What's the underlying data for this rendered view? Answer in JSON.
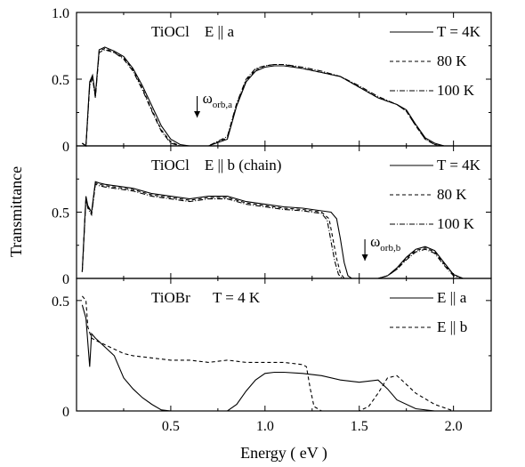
{
  "chart_data": [
    {
      "type": "line",
      "panel_label": "TiOCl    E || a",
      "xlabel": "Energy ( eV )",
      "ylabel": "Transmittance",
      "xlim": [
        0.0,
        2.2
      ],
      "ylim": [
        0.0,
        1.0
      ],
      "y_ticks": [
        "0",
        "0.5",
        "1.0"
      ],
      "legend_position": "top-right",
      "annotation": {
        "base": "ω",
        "sub": "orb,a",
        "x": 0.64
      },
      "series": [
        {
          "name": "T = 4K",
          "dash": "solid",
          "x": [
            0.03,
            0.05,
            0.07,
            0.085,
            0.1,
            0.12,
            0.15,
            0.2,
            0.25,
            0.3,
            0.35,
            0.4,
            0.45,
            0.5,
            0.55,
            0.6,
            0.65,
            0.7,
            0.8,
            0.85,
            0.9,
            0.95,
            1.0,
            1.05,
            1.1,
            1.2,
            1.3,
            1.4,
            1.5,
            1.6,
            1.7,
            1.75,
            1.8,
            1.85,
            1.9,
            1.95,
            2.0
          ],
          "y": [
            0.02,
            0.0,
            0.48,
            0.53,
            0.38,
            0.72,
            0.74,
            0.71,
            0.67,
            0.58,
            0.45,
            0.3,
            0.15,
            0.05,
            0.01,
            0.0,
            0.0,
            0.0,
            0.05,
            0.3,
            0.48,
            0.56,
            0.59,
            0.6,
            0.6,
            0.58,
            0.55,
            0.52,
            0.44,
            0.36,
            0.31,
            0.27,
            0.16,
            0.06,
            0.02,
            0.0,
            0.0
          ]
        },
        {
          "name": "80 K",
          "dash": "4,3",
          "x": [
            0.03,
            0.05,
            0.07,
            0.085,
            0.1,
            0.12,
            0.15,
            0.2,
            0.25,
            0.3,
            0.35,
            0.4,
            0.45,
            0.5,
            0.55,
            0.6,
            0.65,
            0.7,
            0.8,
            0.85,
            0.9,
            0.95,
            1.0,
            1.05,
            1.1,
            1.2,
            1.3,
            1.4,
            1.5,
            1.6,
            1.7,
            1.75,
            1.8,
            1.85,
            1.9,
            1.95,
            2.0
          ],
          "y": [
            0.02,
            0.0,
            0.46,
            0.52,
            0.37,
            0.71,
            0.73,
            0.7,
            0.66,
            0.57,
            0.43,
            0.27,
            0.12,
            0.03,
            0.0,
            0.0,
            0.0,
            0.0,
            0.06,
            0.31,
            0.49,
            0.57,
            0.6,
            0.61,
            0.61,
            0.58,
            0.55,
            0.52,
            0.44,
            0.36,
            0.31,
            0.26,
            0.15,
            0.05,
            0.01,
            0.0,
            0.0
          ]
        },
        {
          "name": "100 K",
          "dash": "6,2,1,2",
          "x": [
            0.03,
            0.05,
            0.07,
            0.085,
            0.1,
            0.12,
            0.15,
            0.2,
            0.25,
            0.3,
            0.35,
            0.4,
            0.45,
            0.5,
            0.55,
            0.6,
            0.65,
            0.7,
            0.8,
            0.85,
            0.9,
            0.95,
            1.0,
            1.05,
            1.1,
            1.2,
            1.3,
            1.4,
            1.5,
            1.6,
            1.7,
            1.75,
            1.8,
            1.85,
            1.9,
            1.95,
            2.0
          ],
          "y": [
            0.02,
            0.0,
            0.45,
            0.51,
            0.36,
            0.7,
            0.72,
            0.7,
            0.65,
            0.56,
            0.42,
            0.26,
            0.11,
            0.02,
            0.0,
            0.0,
            0.0,
            0.0,
            0.07,
            0.32,
            0.5,
            0.58,
            0.6,
            0.61,
            0.61,
            0.59,
            0.56,
            0.52,
            0.45,
            0.37,
            0.31,
            0.26,
            0.15,
            0.05,
            0.01,
            0.0,
            0.0
          ]
        }
      ]
    },
    {
      "type": "line",
      "panel_label": "TiOCl    E || b (chain)",
      "xlim": [
        0.0,
        2.2
      ],
      "ylim": [
        0.0,
        1.0
      ],
      "y_ticks": [
        "0",
        "0.5"
      ],
      "legend_position": "top-right",
      "annotation": {
        "base": "ω",
        "sub": "orb,b",
        "x": 1.53
      },
      "series": [
        {
          "name": "T = 4K",
          "dash": "solid",
          "x": [
            0.03,
            0.05,
            0.06,
            0.08,
            0.1,
            0.12,
            0.15,
            0.2,
            0.3,
            0.4,
            0.5,
            0.6,
            0.7,
            0.8,
            0.9,
            1.0,
            1.1,
            1.2,
            1.25,
            1.3,
            1.35,
            1.38,
            1.4,
            1.42,
            1.44,
            1.46,
            1.5,
            1.6,
            1.65,
            1.7,
            1.75,
            1.8,
            1.85,
            1.9,
            1.95,
            2.0,
            2.05
          ],
          "y": [
            0.05,
            0.62,
            0.55,
            0.5,
            0.73,
            0.72,
            0.71,
            0.7,
            0.68,
            0.64,
            0.62,
            0.6,
            0.62,
            0.62,
            0.58,
            0.56,
            0.54,
            0.53,
            0.52,
            0.51,
            0.5,
            0.45,
            0.3,
            0.12,
            0.02,
            0.0,
            0.0,
            0.0,
            0.02,
            0.08,
            0.16,
            0.22,
            0.24,
            0.21,
            0.12,
            0.03,
            0.0
          ]
        },
        {
          "name": "80 K",
          "dash": "4,3",
          "x": [
            0.03,
            0.05,
            0.06,
            0.08,
            0.1,
            0.12,
            0.15,
            0.2,
            0.3,
            0.4,
            0.5,
            0.6,
            0.7,
            0.8,
            0.9,
            1.0,
            1.1,
            1.2,
            1.25,
            1.3,
            1.34,
            1.36,
            1.38,
            1.4,
            1.42,
            1.44,
            1.5,
            1.6,
            1.65,
            1.7,
            1.75,
            1.8,
            1.85,
            1.9,
            1.95,
            2.0,
            2.05
          ],
          "y": [
            0.05,
            0.6,
            0.54,
            0.49,
            0.72,
            0.71,
            0.7,
            0.69,
            0.67,
            0.63,
            0.61,
            0.59,
            0.61,
            0.61,
            0.57,
            0.55,
            0.53,
            0.52,
            0.51,
            0.5,
            0.45,
            0.3,
            0.15,
            0.04,
            0.0,
            0.0,
            0.0,
            0.0,
            0.02,
            0.07,
            0.15,
            0.21,
            0.23,
            0.2,
            0.11,
            0.03,
            0.0
          ]
        },
        {
          "name": "100 K",
          "dash": "6,2,1,2",
          "x": [
            0.03,
            0.05,
            0.06,
            0.08,
            0.1,
            0.12,
            0.15,
            0.2,
            0.3,
            0.4,
            0.5,
            0.6,
            0.7,
            0.8,
            0.9,
            1.0,
            1.1,
            1.2,
            1.25,
            1.3,
            1.33,
            1.35,
            1.37,
            1.39,
            1.41,
            1.43,
            1.5,
            1.6,
            1.65,
            1.7,
            1.75,
            1.8,
            1.85,
            1.9,
            1.95,
            2.0,
            2.05
          ],
          "y": [
            0.05,
            0.6,
            0.53,
            0.48,
            0.71,
            0.7,
            0.69,
            0.68,
            0.66,
            0.62,
            0.6,
            0.58,
            0.6,
            0.6,
            0.56,
            0.54,
            0.52,
            0.51,
            0.5,
            0.49,
            0.44,
            0.28,
            0.13,
            0.03,
            0.0,
            0.0,
            0.0,
            0.0,
            0.02,
            0.07,
            0.14,
            0.2,
            0.22,
            0.19,
            0.1,
            0.02,
            0.0
          ]
        }
      ]
    },
    {
      "type": "line",
      "panel_label": "TiOBr      T = 4 K",
      "xlim": [
        0.0,
        2.2
      ],
      "ylim": [
        0.0,
        0.6
      ],
      "y_ticks": [
        "0",
        "0.5"
      ],
      "legend_position": "top-right",
      "series": [
        {
          "name": "E || a",
          "dash": "solid",
          "x": [
            0.03,
            0.05,
            0.07,
            0.08,
            0.1,
            0.15,
            0.2,
            0.25,
            0.3,
            0.35,
            0.4,
            0.45,
            0.5,
            0.6,
            0.7,
            0.8,
            0.85,
            0.9,
            0.95,
            1.0,
            1.05,
            1.1,
            1.2,
            1.3,
            1.4,
            1.5,
            1.6,
            1.65,
            1.7,
            1.8,
            1.9,
            2.0
          ],
          "y": [
            0.48,
            0.42,
            0.2,
            0.35,
            0.33,
            0.29,
            0.25,
            0.15,
            0.1,
            0.06,
            0.03,
            0.005,
            0.0,
            0.0,
            0.0,
            0.0,
            0.03,
            0.09,
            0.14,
            0.17,
            0.175,
            0.175,
            0.17,
            0.16,
            0.14,
            0.13,
            0.14,
            0.1,
            0.05,
            0.01,
            0.0,
            0.0
          ]
        },
        {
          "name": "E || b",
          "dash": "4,3",
          "x": [
            0.03,
            0.05,
            0.06,
            0.08,
            0.1,
            0.15,
            0.2,
            0.25,
            0.3,
            0.4,
            0.5,
            0.6,
            0.7,
            0.8,
            0.9,
            1.0,
            1.1,
            1.2,
            1.22,
            1.24,
            1.26,
            1.3,
            1.4,
            1.5,
            1.55,
            1.6,
            1.65,
            1.7,
            1.75,
            1.8,
            1.9,
            2.0
          ],
          "y": [
            0.52,
            0.5,
            0.38,
            0.33,
            0.32,
            0.3,
            0.28,
            0.26,
            0.25,
            0.24,
            0.23,
            0.23,
            0.22,
            0.23,
            0.22,
            0.22,
            0.22,
            0.21,
            0.2,
            0.1,
            0.02,
            0.0,
            0.0,
            0.0,
            0.02,
            0.08,
            0.15,
            0.16,
            0.12,
            0.08,
            0.03,
            0.0
          ]
        }
      ]
    }
  ],
  "x_ticks": [
    "0.5",
    "1.0",
    "1.5",
    "2.0"
  ]
}
